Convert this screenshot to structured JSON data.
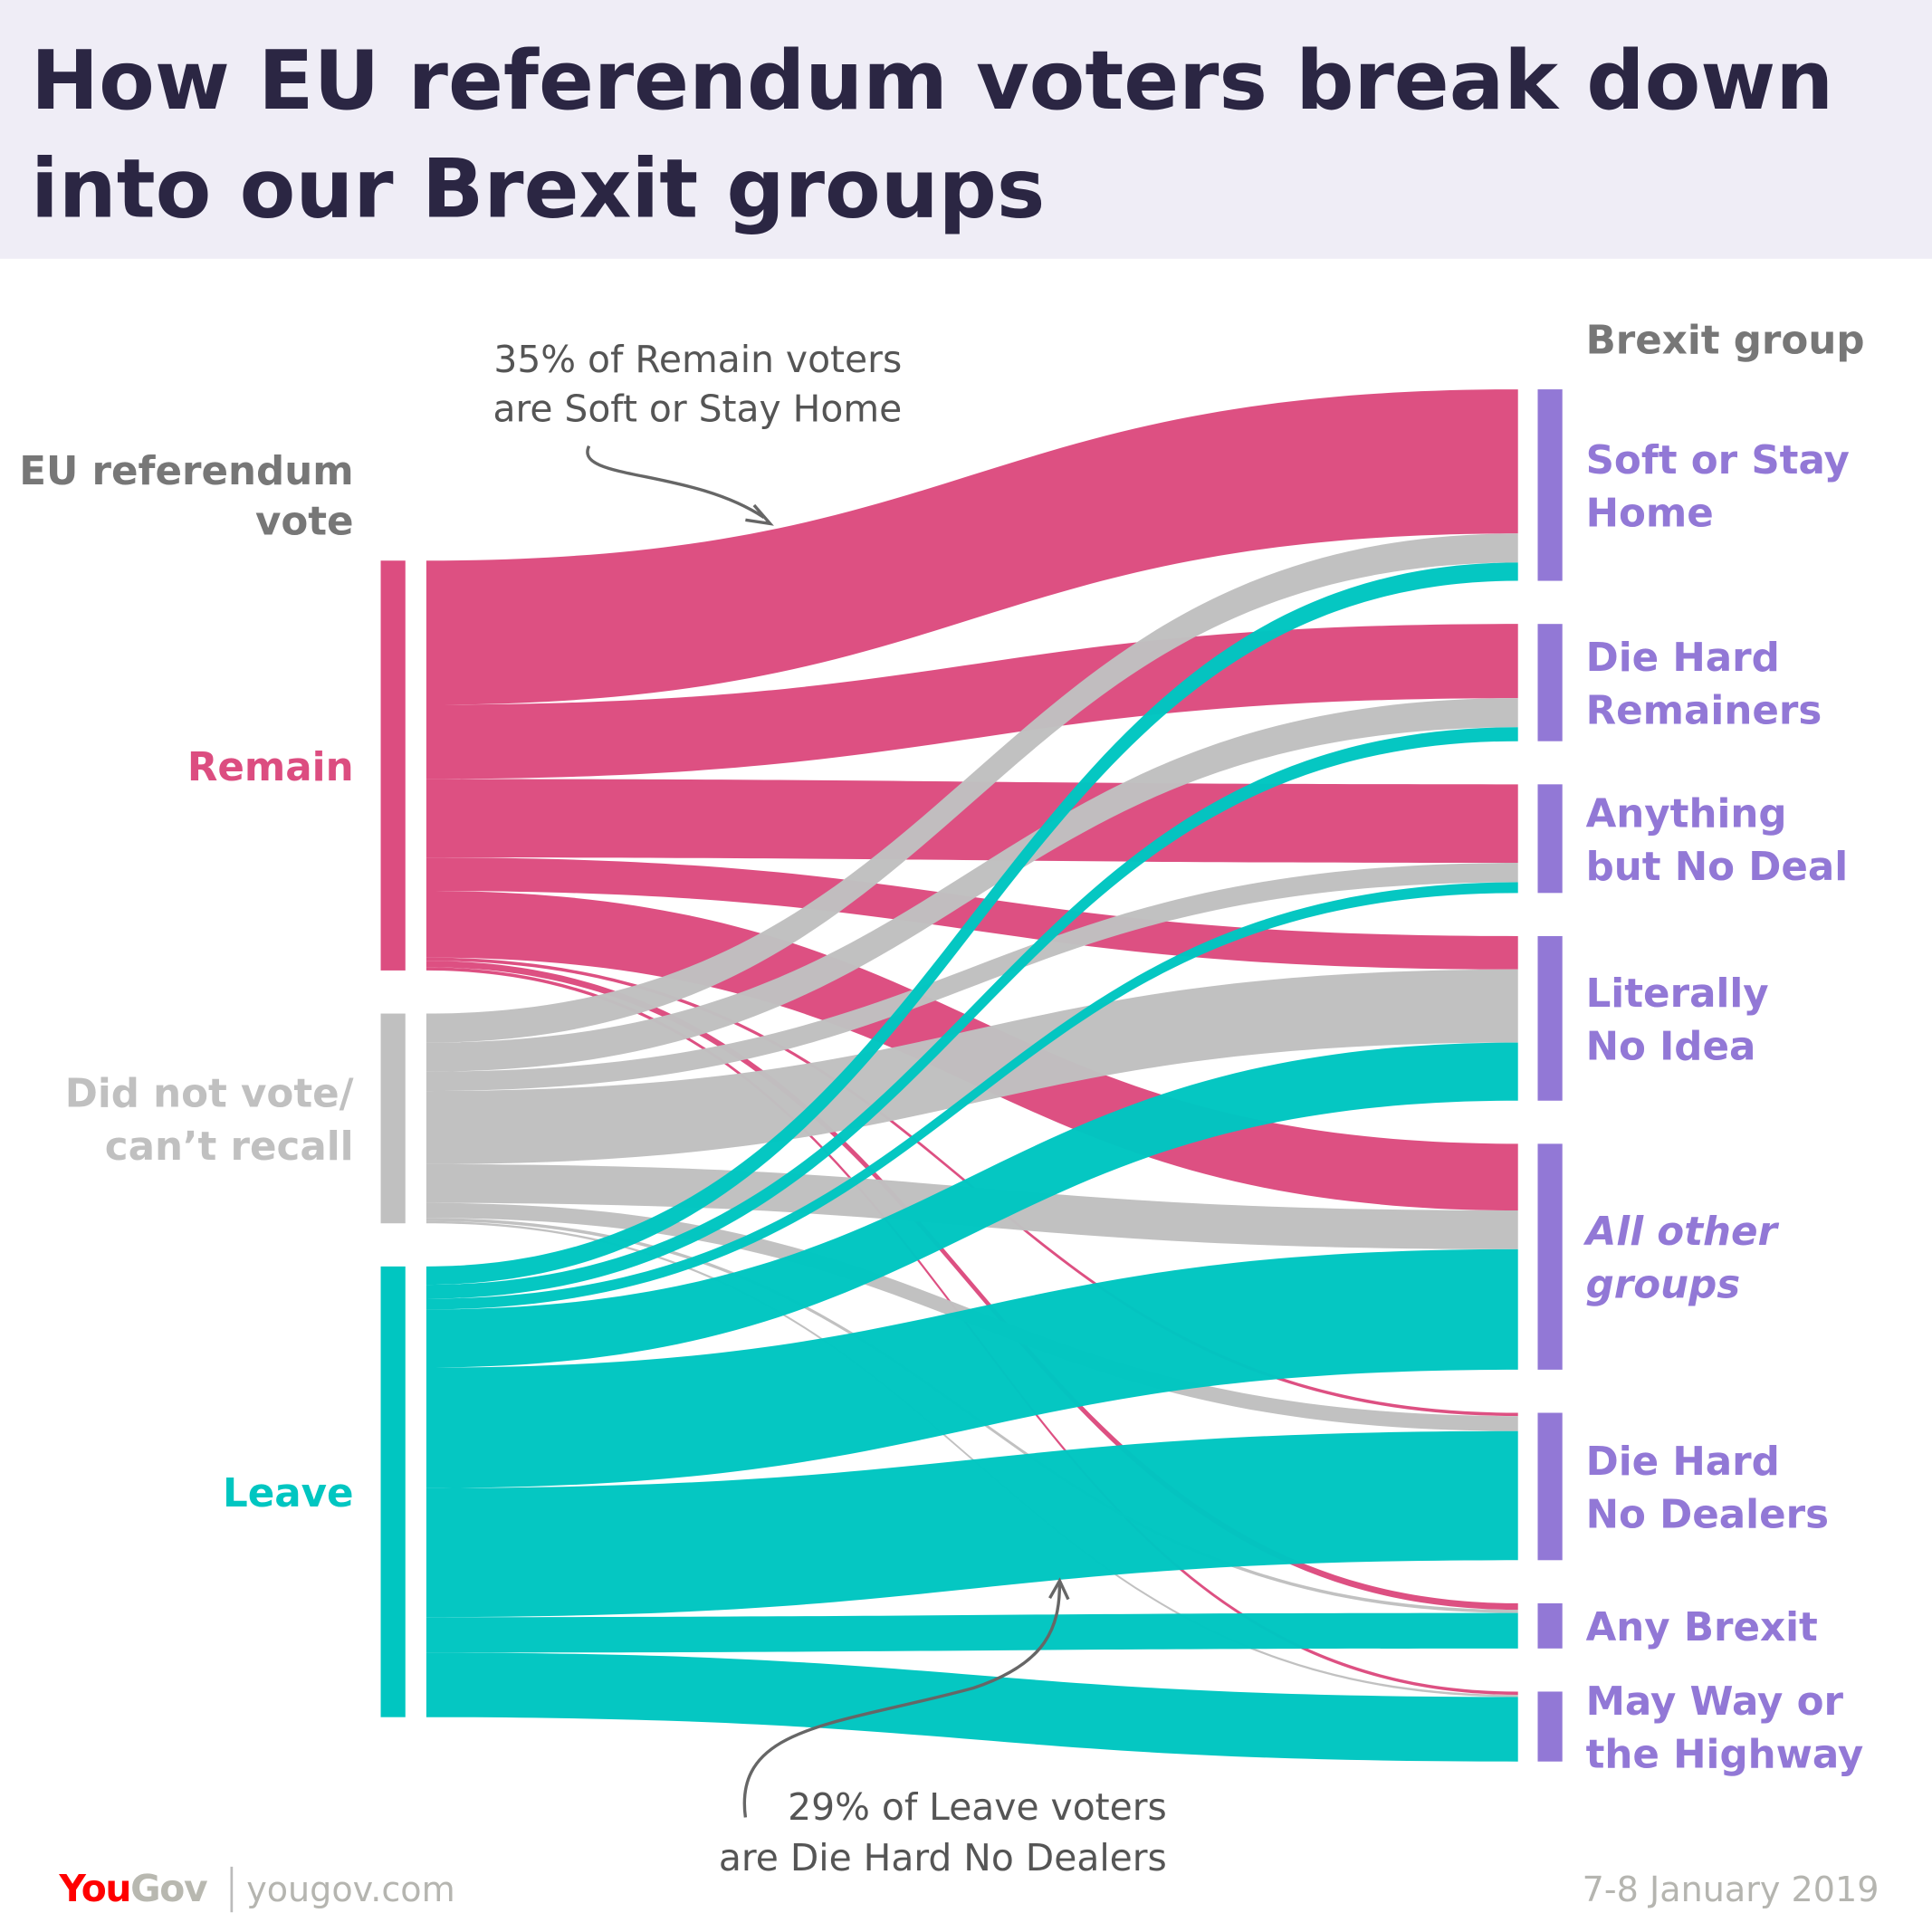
{
  "title_lines": [
    "How EU referendum voters break down",
    "into our Brexit groups"
  ],
  "left_header": [
    "EU referendum",
    "vote"
  ],
  "right_header": "Brexit group",
  "annotations": {
    "top": [
      "35% of Remain voters",
      "are Soft or Stay Home"
    ],
    "bottom": [
      "29% of Leave voters",
      "are Die Hard No Dealers"
    ]
  },
  "footer": {
    "logo_you": "You",
    "logo_gov": "Gov",
    "site": "yougov.com",
    "date": "7-8 January 2019"
  },
  "colors": {
    "remain": "#dc4d80",
    "did_not_vote": "#c0c0c0",
    "leave": "#00c6c1",
    "group": "#9278d6",
    "title_bg": "#efedf6",
    "title_text": "#2b2643",
    "header_text": "#777777"
  },
  "chart_data": {
    "type": "sankey",
    "unit": "approx. % of all respondents (estimated from band widths)",
    "sources": [
      {
        "label_lines": [
          "Remain"
        ],
        "color_key": "remain"
      },
      {
        "label_lines": [
          "Did not vote/",
          "can’t recall"
        ],
        "color_key": "did_not_vote"
      },
      {
        "label_lines": [
          "Leave"
        ],
        "color_key": "leave"
      }
    ],
    "targets": [
      {
        "label_lines": [
          "Soft or Stay",
          "Home"
        ],
        "italic": false
      },
      {
        "label_lines": [
          "Die Hard",
          "Remainers"
        ],
        "italic": false
      },
      {
        "label_lines": [
          "Anything",
          "but No Deal"
        ],
        "italic": false
      },
      {
        "label_lines": [
          "Literally",
          "No Idea"
        ],
        "italic": false
      },
      {
        "label_lines": [
          "All other",
          "groups"
        ],
        "italic": true
      },
      {
        "label_lines": [
          "Die Hard",
          "No Dealers"
        ],
        "italic": false
      },
      {
        "label_lines": [
          "Any Brexit"
        ],
        "italic": false
      },
      {
        "label_lines": [
          "May Way or",
          "the Highway"
        ],
        "italic": false
      }
    ],
    "flows": [
      [
        13.4,
        6.9,
        7.3,
        3.1,
        6.2,
        0.3,
        0.6,
        0.3
      ],
      [
        2.7,
        2.7,
        1.8,
        6.8,
        3.6,
        1.4,
        0.3,
        0.2
      ],
      [
        1.7,
        1.3,
        1.0,
        5.4,
        11.2,
        12.0,
        3.3,
        6.0
      ]
    ]
  }
}
